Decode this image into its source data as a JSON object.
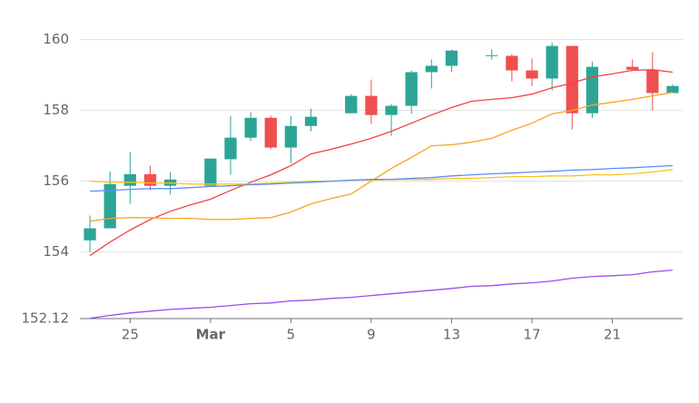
{
  "chart_data": {
    "type": "candlestick",
    "categories": [
      null,
      null,
      "25",
      null,
      null,
      null,
      "Mar",
      null,
      null,
      null,
      "5",
      null,
      null,
      null,
      "9",
      null,
      null,
      null,
      "13",
      null,
      null,
      null,
      "17",
      null,
      null,
      null,
      "21",
      null,
      null,
      null
    ],
    "open": [
      154.33,
      154.67,
      155.87,
      156.2,
      155.87,
      null,
      155.87,
      156.62,
      157.23,
      157.79,
      156.95,
      157.56,
      null,
      157.92,
      158.41,
      157.87,
      158.13,
      159.08,
      159.26,
      null,
      159.54,
      159.54,
      159.13,
      158.9,
      159.82,
      157.92,
      null,
      159.23,
      159.15,
      158.49
    ],
    "high": [
      155.03,
      156.28,
      156.82,
      156.44,
      156.26,
      null,
      156.64,
      157.85,
      157.95,
      157.85,
      157.85,
      158.05,
      null,
      158.46,
      158.87,
      158.18,
      159.13,
      159.44,
      159.72,
      null,
      159.72,
      159.59,
      159.46,
      159.92,
      159.82,
      159.38,
      null,
      159.44,
      159.64,
      158.74
    ],
    "low": [
      154.0,
      154.67,
      155.36,
      155.74,
      155.62,
      null,
      155.87,
      156.18,
      157.13,
      156.9,
      156.51,
      157.41,
      null,
      157.92,
      157.62,
      157.28,
      157.9,
      158.62,
      159.08,
      null,
      159.44,
      158.82,
      158.69,
      158.56,
      157.46,
      157.79,
      null,
      159.15,
      158.0,
      158.49
    ],
    "close": [
      154.67,
      155.92,
      156.2,
      155.87,
      156.05,
      null,
      156.64,
      157.23,
      157.79,
      156.95,
      157.56,
      157.82,
      null,
      158.41,
      157.87,
      158.13,
      159.08,
      159.26,
      159.69,
      null,
      159.56,
      159.13,
      158.9,
      159.82,
      157.92,
      159.23,
      null,
      159.15,
      158.49,
      158.69
    ],
    "up_color": "#2ca596",
    "down_color": "#ef4f4f",
    "series": [
      {
        "color": "#ef4444",
        "values": [
          153.9,
          154.28,
          154.62,
          154.92,
          155.15,
          155.33,
          155.49,
          155.74,
          155.97,
          156.18,
          156.44,
          156.77,
          156.9,
          157.05,
          157.21,
          157.41,
          157.64,
          157.87,
          158.08,
          158.26,
          158.31,
          158.36,
          158.46,
          158.64,
          158.77,
          158.95,
          159.03,
          159.13,
          159.15,
          159.08
        ]
      },
      {
        "color": "#f5a524",
        "values": [
          154.87,
          154.95,
          154.97,
          154.97,
          154.95,
          154.95,
          154.92,
          154.92,
          154.95,
          154.97,
          155.13,
          155.36,
          155.51,
          155.64,
          156.0,
          156.36,
          156.67,
          157.0,
          157.03,
          157.1,
          157.21,
          157.44,
          157.64,
          157.9,
          158.0,
          158.15,
          158.23,
          158.31,
          158.41,
          158.51
        ]
      },
      {
        "color": "#f7c51e",
        "values": [
          156.0,
          155.97,
          155.97,
          155.95,
          155.95,
          155.92,
          155.92,
          155.92,
          155.92,
          155.95,
          155.97,
          156.0,
          156.0,
          156.03,
          156.03,
          156.05,
          156.05,
          156.05,
          156.08,
          156.08,
          156.1,
          156.13,
          156.13,
          156.15,
          156.15,
          156.18,
          156.18,
          156.21,
          156.26,
          156.33
        ]
      },
      {
        "color": "#5b8ff9",
        "values": [
          155.72,
          155.74,
          155.77,
          155.79,
          155.79,
          155.82,
          155.85,
          155.87,
          155.9,
          155.92,
          155.95,
          155.97,
          156.0,
          156.03,
          156.05,
          156.05,
          156.08,
          156.1,
          156.15,
          156.18,
          156.21,
          156.23,
          156.26,
          156.28,
          156.31,
          156.33,
          156.36,
          156.38,
          156.41,
          156.44
        ]
      },
      {
        "color": "#9b4dea",
        "values": [
          152.13,
          152.21,
          152.28,
          152.33,
          152.38,
          152.41,
          152.44,
          152.49,
          152.54,
          152.56,
          152.62,
          152.64,
          152.69,
          152.72,
          152.77,
          152.82,
          152.87,
          152.92,
          152.97,
          153.03,
          153.05,
          153.1,
          153.13,
          153.18,
          153.26,
          153.31,
          153.33,
          153.36,
          153.44,
          153.49
        ]
      }
    ],
    "ylim": [
      152.12,
      160.4
    ],
    "yticks": [
      152.12,
      154,
      156,
      158,
      160
    ],
    "grid": true
  }
}
